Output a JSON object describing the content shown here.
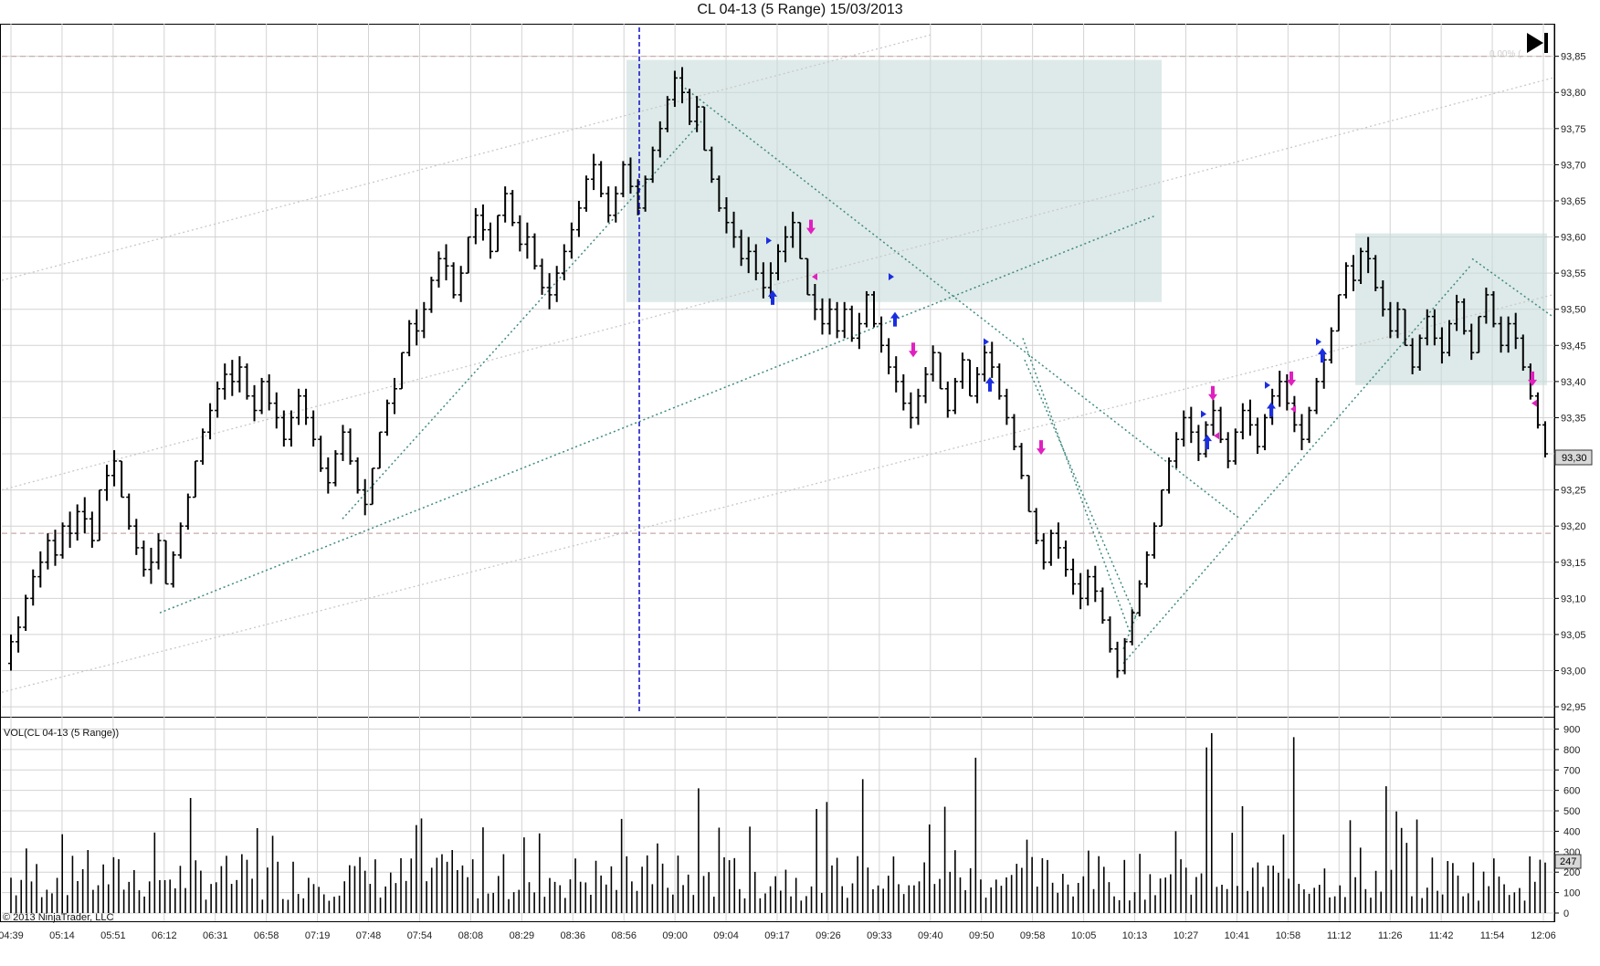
{
  "title": "CL 04-13 (5 Range)  15/03/2013",
  "copyright": "© 2013 NinjaTrader, LLC",
  "volume_panel_label": "VOL(CL 04-13 (5 Range))",
  "overlay_label": "0.00% (",
  "price_badge": "93,30",
  "volume_badge": "247",
  "colors": {
    "bar": "#000000",
    "grid": "#d3d3d3",
    "zone_fill": "#c8dcda",
    "trendline": "#3f8a80",
    "channel": "#c8c8c8",
    "cursor_line": "#1a1acc",
    "buy_arrow": "#1a2ee0",
    "sell_arrow": "#e020c0",
    "dashed_level": "#c8a8a8"
  },
  "icons": [
    "skip-to-end-icon"
  ],
  "chart_data": [
    {
      "type": "ohlc",
      "name": "price",
      "title": "CL 04-13 (5 Range)  15/03/2013",
      "y_ticks": [
        "92,95",
        "93,00",
        "93,05",
        "93,10",
        "93,15",
        "93,20",
        "93,25",
        "93,30",
        "93,35",
        "93,40",
        "93,45",
        "93,50",
        "93,55",
        "93,60",
        "93,65",
        "93,70",
        "93,75",
        "93,80",
        "93,85"
      ],
      "ylim": [
        92.94,
        93.89
      ],
      "x_ticks": [
        "04:39",
        "05:14",
        "05:51",
        "06:12",
        "06:31",
        "06:58",
        "07:19",
        "07:48",
        "07:54",
        "08:08",
        "08:29",
        "08:36",
        "08:56",
        "09:00",
        "09:04",
        "09:17",
        "09:26",
        "09:33",
        "09:40",
        "09:50",
        "09:58",
        "10:05",
        "10:13",
        "10:27",
        "10:41",
        "10:58",
        "11:12",
        "11:26",
        "11:42",
        "11:54",
        "12:06"
      ],
      "last_price": 93.3,
      "horizontal_levels": [
        93.85,
        93.19
      ],
      "approx_closes": [
        93.04,
        93.06,
        93.1,
        93.13,
        93.15,
        93.18,
        93.16,
        93.2,
        93.19,
        93.22,
        93.21,
        93.18,
        93.25,
        93.27,
        93.29,
        93.24,
        93.2,
        93.17,
        93.14,
        93.15,
        93.18,
        93.12,
        93.16,
        93.2,
        93.24,
        93.29,
        93.33,
        93.36,
        93.39,
        93.41,
        93.4,
        93.42,
        93.38,
        93.36,
        93.4,
        93.37,
        93.35,
        93.32,
        93.35,
        93.38,
        93.35,
        93.32,
        93.28,
        93.26,
        93.3,
        93.33,
        93.29,
        93.25,
        93.23,
        93.28,
        93.33,
        93.37,
        93.39,
        93.44,
        93.48,
        93.47,
        93.5,
        93.54,
        93.57,
        93.56,
        93.52,
        93.55,
        93.6,
        93.63,
        93.61,
        93.58,
        93.63,
        93.66,
        93.62,
        93.59,
        93.6,
        93.56,
        93.53,
        93.52,
        93.55,
        93.58,
        93.61,
        93.64,
        93.68,
        93.7,
        93.66,
        93.63,
        93.66,
        93.7,
        93.67,
        93.64,
        93.68,
        93.72,
        93.75,
        93.79,
        93.82,
        93.8,
        93.76,
        93.78,
        93.72,
        93.68,
        93.64,
        93.62,
        93.6,
        93.57,
        93.58,
        93.55,
        93.53,
        93.55,
        93.58,
        93.6,
        93.62,
        93.57,
        93.52,
        93.5,
        93.48,
        93.5,
        93.47,
        93.5,
        93.46,
        93.48,
        93.52,
        93.48,
        93.45,
        93.42,
        93.4,
        93.37,
        93.35,
        93.38,
        93.41,
        93.44,
        93.39,
        93.36,
        93.4,
        93.43,
        93.38,
        93.41,
        93.44,
        93.42,
        93.38,
        93.35,
        93.31,
        93.27,
        93.22,
        93.18,
        93.15,
        93.19,
        93.17,
        93.14,
        93.12,
        93.1,
        93.13,
        93.11,
        93.07,
        93.03,
        93.0,
        93.04,
        93.08,
        93.12,
        93.16,
        93.2,
        93.25,
        93.29,
        93.32,
        93.35,
        93.33,
        93.3,
        93.34,
        93.36,
        93.32,
        93.29,
        93.33,
        93.36,
        93.34,
        93.31,
        93.35,
        93.38,
        93.4,
        93.37,
        93.34,
        93.32,
        93.36,
        93.4,
        93.43,
        93.47,
        93.52,
        93.56,
        93.54,
        93.58,
        93.57,
        93.53,
        93.5,
        93.47,
        93.5,
        93.45,
        93.42,
        93.46,
        93.49,
        93.46,
        93.44,
        93.48,
        93.51,
        93.47,
        93.44,
        93.49,
        93.52,
        93.48,
        93.45,
        93.48,
        93.46,
        93.42,
        93.38,
        93.34,
        93.3
      ]
    },
    {
      "type": "bar",
      "name": "volume",
      "title": "VOL(CL 04-13 (5 Range))",
      "y_ticks": [
        "0",
        "100",
        "200",
        "300",
        "400",
        "500",
        "600",
        "700",
        "800",
        "900"
      ],
      "ylim": [
        0,
        920
      ],
      "last_value": 247,
      "approx_peaks": [
        880,
        810,
        860,
        655,
        610,
        520,
        760,
        620
      ]
    }
  ]
}
